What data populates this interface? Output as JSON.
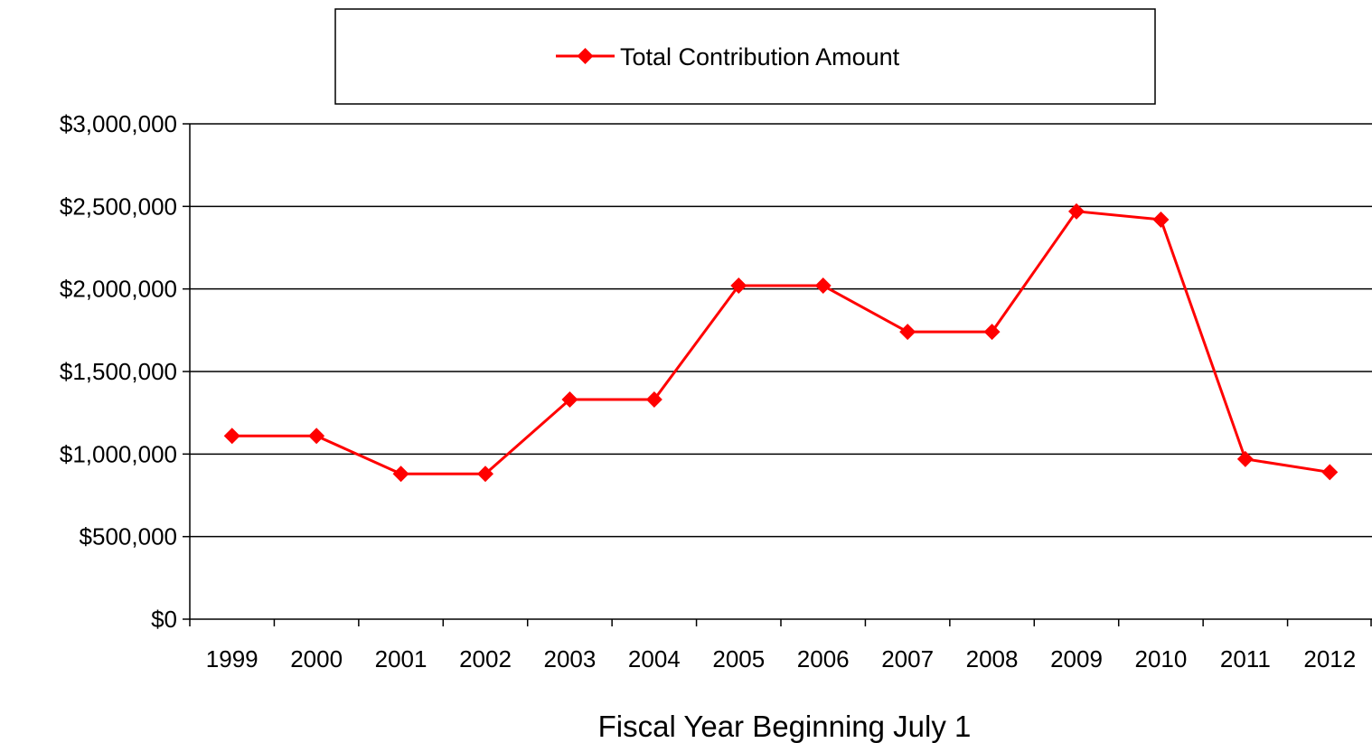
{
  "chart_data": {
    "type": "line",
    "x": [
      "1999",
      "2000",
      "2001",
      "2002",
      "2003",
      "2004",
      "2005",
      "2006",
      "2007",
      "2008",
      "2009",
      "2010",
      "2011",
      "2012"
    ],
    "series": [
      {
        "name": "Total Contribution Amount",
        "values": [
          1110000,
          1110000,
          880000,
          880000,
          1330000,
          1330000,
          2020000,
          2020000,
          1740000,
          1740000,
          2470000,
          2420000,
          970000,
          890000
        ],
        "color": "#ff0000",
        "marker": "diamond"
      }
    ],
    "xlabel": "Fiscal Year Beginning July 1",
    "ylabel": "",
    "ylim": [
      0,
      3000000
    ],
    "yticks": [
      0,
      500000,
      1000000,
      1500000,
      2000000,
      2500000,
      3000000
    ],
    "ytick_labels": [
      "$0",
      "$500,000",
      "$1,000,000",
      "$1,500,000",
      "$2,000,000",
      "$2,500,000",
      "$3,000,000"
    ],
    "grid": true,
    "legend": "top-center"
  }
}
